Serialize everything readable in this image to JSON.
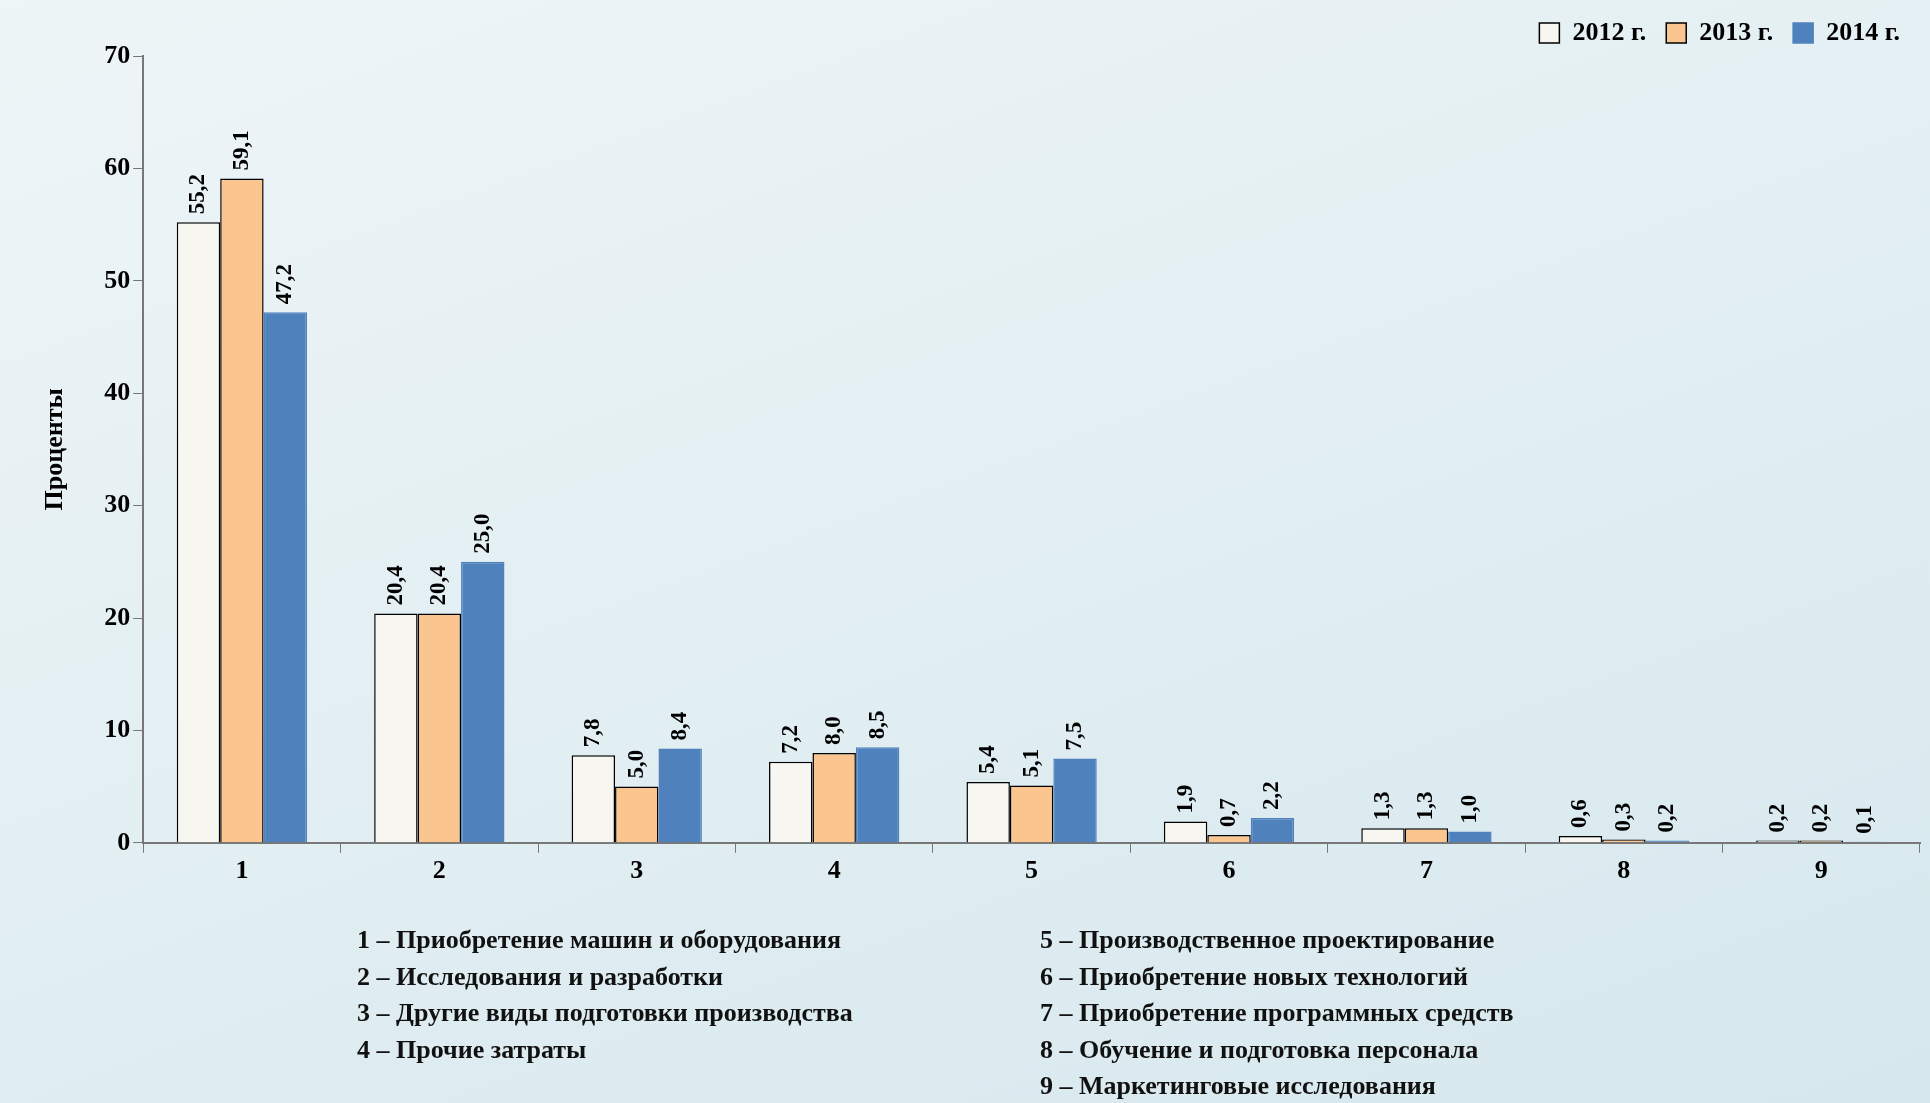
{
  "chart_data": {
    "type": "bar",
    "ylabel": "Проценты",
    "categories": [
      "1",
      "2",
      "3",
      "4",
      "5",
      "6",
      "7",
      "8",
      "9"
    ],
    "series": [
      {
        "name": "2012 г.",
        "color": "#f8f6f0",
        "values": [
          55.2,
          20.4,
          7.8,
          7.2,
          5.4,
          1.9,
          1.3,
          0.6,
          0.2
        ],
        "value_labels": [
          "55,2",
          "20,4",
          "7,8",
          "7,2",
          "5,4",
          "1,9",
          "1,3",
          "0,6",
          "0,2"
        ]
      },
      {
        "name": "2013 г.",
        "color": "#fbc590",
        "values": [
          59.1,
          20.4,
          5.0,
          8.0,
          5.1,
          0.7,
          1.3,
          0.3,
          0.2
        ],
        "value_labels": [
          "59,1",
          "20,4",
          "5,0",
          "8,0",
          "5,1",
          "0,7",
          "1,3",
          "0,3",
          "0,2"
        ]
      },
      {
        "name": "2014 г.",
        "color": "#4f81bd",
        "values": [
          47.2,
          25.0,
          8.4,
          8.5,
          7.5,
          2.2,
          1.0,
          0.2,
          0.1
        ],
        "value_labels": [
          "47,2",
          "25,0",
          "8,4",
          "8,5",
          "7,5",
          "2,2",
          "1,0",
          "0,2",
          "0,1"
        ]
      }
    ],
    "ylim": [
      0,
      70
    ],
    "yticks": [
      0,
      10,
      20,
      30,
      40,
      50,
      60,
      70
    ],
    "grid": false,
    "legend": "top right",
    "annotations": [
      "1 – Приобретение машин и оборудования",
      "2 – Исследования и разработки",
      "3 – Другие виды подготовки производства",
      "4 – Прочие затраты",
      "5 – Производственное проектирование",
      "6 – Приобретение новых технологий",
      "7 – Приобретение программных средств",
      "8 – Обучение и подготовка персонала",
      "9 – Маркетинговые исследования"
    ]
  }
}
